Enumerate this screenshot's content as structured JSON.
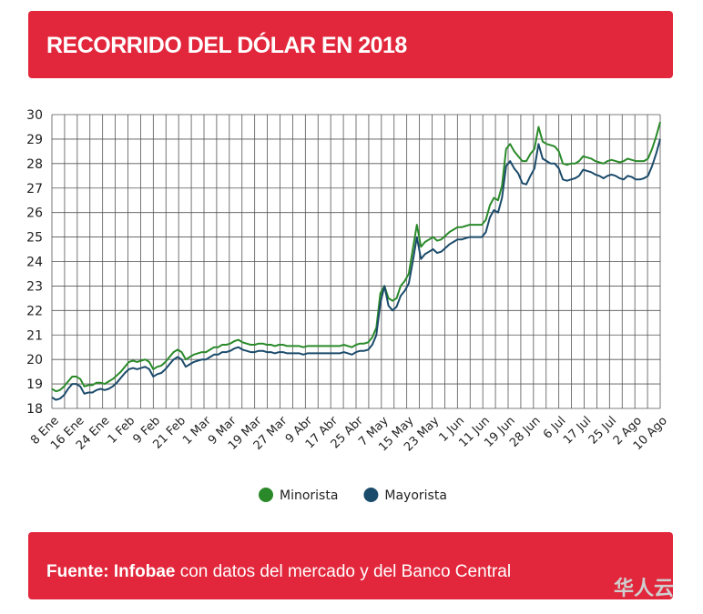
{
  "header": {
    "title": "RECORRIDO DEL DÓLAR EN 2018"
  },
  "footer": {
    "source_label": "Fuente:",
    "source_brand": "Infobae",
    "source_rest": "con datos del mercado y del Banco Central"
  },
  "watermark": "华人云",
  "colors": {
    "header_bg": "#e2273c",
    "minorista": "#2a8a2a",
    "mayorista": "#1b4b6b",
    "grid": "#555555"
  },
  "chart_data": {
    "type": "line",
    "title": "RECORRIDO DEL DÓLAR EN 2018",
    "xlabel": "",
    "ylabel": "",
    "ylim": [
      18,
      30
    ],
    "yticks": [
      18,
      19,
      20,
      21,
      22,
      23,
      24,
      25,
      26,
      27,
      28,
      29,
      30
    ],
    "grid": true,
    "legend_position": "bottom-center",
    "x_tick_labels": [
      "8 Ene",
      "16 Ene",
      "24 Ene",
      "1 Feb",
      "9 Feb",
      "21 Feb",
      "1 Mar",
      "9 Mar",
      "19 Mar",
      "27 Mar",
      "9 Abr",
      "17 Abr",
      "25 Abr",
      "7 May",
      "15 May",
      "23 May",
      "1 Jun",
      "11 Jun",
      "19 Jun",
      "28 Jun",
      "6 Jul",
      "17 Jul",
      "25 Jul",
      "2 Ago",
      "10 Ago"
    ],
    "x_index_range": [
      0,
      150
    ],
    "series": [
      {
        "name": "Minorista",
        "color": "#2a8a2a",
        "points": [
          [
            0,
            18.8
          ],
          [
            1,
            18.7
          ],
          [
            2,
            18.75
          ],
          [
            3,
            18.9
          ],
          [
            4,
            19.1
          ],
          [
            5,
            19.3
          ],
          [
            6,
            19.3
          ],
          [
            7,
            19.2
          ],
          [
            8,
            18.9
          ],
          [
            9,
            18.95
          ],
          [
            10,
            18.95
          ],
          [
            11,
            19.05
          ],
          [
            12,
            19.05
          ],
          [
            13,
            19.0
          ],
          [
            14,
            19.1
          ],
          [
            15,
            19.2
          ],
          [
            16,
            19.35
          ],
          [
            17,
            19.5
          ],
          [
            18,
            19.7
          ],
          [
            19,
            19.9
          ],
          [
            20,
            19.95
          ],
          [
            21,
            19.9
          ],
          [
            22,
            19.95
          ],
          [
            23,
            20.0
          ],
          [
            24,
            19.9
          ],
          [
            25,
            19.6
          ],
          [
            26,
            19.7
          ],
          [
            27,
            19.75
          ],
          [
            28,
            19.9
          ],
          [
            29,
            20.1
          ],
          [
            30,
            20.3
          ],
          [
            31,
            20.4
          ],
          [
            32,
            20.3
          ],
          [
            33,
            20.0
          ],
          [
            34,
            20.1
          ],
          [
            35,
            20.2
          ],
          [
            36,
            20.25
          ],
          [
            37,
            20.3
          ],
          [
            38,
            20.3
          ],
          [
            39,
            20.4
          ],
          [
            40,
            20.5
          ],
          [
            41,
            20.5
          ],
          [
            42,
            20.6
          ],
          [
            43,
            20.6
          ],
          [
            44,
            20.65
          ],
          [
            45,
            20.75
          ],
          [
            46,
            20.8
          ],
          [
            47,
            20.7
          ],
          [
            48,
            20.65
          ],
          [
            49,
            20.6
          ],
          [
            50,
            20.6
          ],
          [
            51,
            20.65
          ],
          [
            52,
            20.65
          ],
          [
            53,
            20.6
          ],
          [
            54,
            20.6
          ],
          [
            55,
            20.55
          ],
          [
            56,
            20.6
          ],
          [
            57,
            20.6
          ],
          [
            58,
            20.55
          ],
          [
            59,
            20.55
          ],
          [
            60,
            20.55
          ],
          [
            61,
            20.55
          ],
          [
            62,
            20.5
          ],
          [
            63,
            20.55
          ],
          [
            64,
            20.55
          ],
          [
            65,
            20.55
          ],
          [
            66,
            20.55
          ],
          [
            67,
            20.55
          ],
          [
            68,
            20.55
          ],
          [
            69,
            20.55
          ],
          [
            70,
            20.55
          ],
          [
            71,
            20.55
          ],
          [
            72,
            20.6
          ],
          [
            73,
            20.55
          ],
          [
            74,
            20.5
          ],
          [
            75,
            20.6
          ],
          [
            76,
            20.65
          ],
          [
            77,
            20.65
          ],
          [
            78,
            20.7
          ],
          [
            79,
            20.9
          ],
          [
            80,
            21.3
          ],
          [
            81,
            22.7
          ],
          [
            82,
            23.0
          ],
          [
            83,
            22.5
          ],
          [
            84,
            22.4
          ],
          [
            85,
            22.5
          ],
          [
            86,
            23.0
          ],
          [
            87,
            23.2
          ],
          [
            88,
            23.5
          ],
          [
            89,
            24.5
          ],
          [
            90,
            25.5
          ],
          [
            91,
            24.6
          ],
          [
            92,
            24.8
          ],
          [
            93,
            24.9
          ],
          [
            94,
            25.0
          ],
          [
            95,
            24.85
          ],
          [
            96,
            24.9
          ],
          [
            97,
            25.05
          ],
          [
            98,
            25.2
          ],
          [
            99,
            25.3
          ],
          [
            100,
            25.4
          ],
          [
            101,
            25.4
          ],
          [
            102,
            25.45
          ],
          [
            103,
            25.5
          ],
          [
            104,
            25.5
          ],
          [
            105,
            25.5
          ],
          [
            106,
            25.5
          ],
          [
            107,
            25.7
          ],
          [
            108,
            26.3
          ],
          [
            109,
            26.6
          ],
          [
            110,
            26.5
          ],
          [
            111,
            27.1
          ],
          [
            112,
            28.6
          ],
          [
            113,
            28.8
          ],
          [
            114,
            28.5
          ],
          [
            115,
            28.3
          ],
          [
            116,
            28.1
          ],
          [
            117,
            28.1
          ],
          [
            118,
            28.4
          ],
          [
            119,
            28.6
          ],
          [
            120,
            29.5
          ],
          [
            121,
            28.9
          ],
          [
            122,
            28.8
          ],
          [
            123,
            28.75
          ],
          [
            124,
            28.7
          ],
          [
            125,
            28.5
          ],
          [
            126,
            28.0
          ],
          [
            127,
            27.95
          ],
          [
            128,
            28.0
          ],
          [
            129,
            28.0
          ],
          [
            130,
            28.1
          ],
          [
            131,
            28.3
          ],
          [
            132,
            28.25
          ],
          [
            133,
            28.2
          ],
          [
            134,
            28.1
          ],
          [
            135,
            28.05
          ],
          [
            136,
            28.0
          ],
          [
            137,
            28.1
          ],
          [
            138,
            28.15
          ],
          [
            139,
            28.1
          ],
          [
            140,
            28.05
          ],
          [
            141,
            28.1
          ],
          [
            142,
            28.2
          ],
          [
            143,
            28.15
          ],
          [
            144,
            28.1
          ],
          [
            145,
            28.1
          ],
          [
            146,
            28.1
          ],
          [
            147,
            28.2
          ],
          [
            148,
            28.6
          ],
          [
            149,
            29.1
          ],
          [
            150,
            29.7
          ]
        ]
      },
      {
        "name": "Mayorista",
        "color": "#1b4b6b",
        "points": [
          [
            0,
            18.45
          ],
          [
            1,
            18.35
          ],
          [
            2,
            18.4
          ],
          [
            3,
            18.55
          ],
          [
            4,
            18.8
          ],
          [
            5,
            19.0
          ],
          [
            6,
            19.0
          ],
          [
            7,
            18.9
          ],
          [
            8,
            18.6
          ],
          [
            9,
            18.65
          ],
          [
            10,
            18.65
          ],
          [
            11,
            18.75
          ],
          [
            12,
            18.8
          ],
          [
            13,
            18.75
          ],
          [
            14,
            18.8
          ],
          [
            15,
            18.9
          ],
          [
            16,
            19.05
          ],
          [
            17,
            19.25
          ],
          [
            18,
            19.45
          ],
          [
            19,
            19.6
          ],
          [
            20,
            19.65
          ],
          [
            21,
            19.6
          ],
          [
            22,
            19.65
          ],
          [
            23,
            19.7
          ],
          [
            24,
            19.6
          ],
          [
            25,
            19.3
          ],
          [
            26,
            19.4
          ],
          [
            27,
            19.45
          ],
          [
            28,
            19.6
          ],
          [
            29,
            19.8
          ],
          [
            30,
            20.0
          ],
          [
            31,
            20.1
          ],
          [
            32,
            20.0
          ],
          [
            33,
            19.7
          ],
          [
            34,
            19.8
          ],
          [
            35,
            19.9
          ],
          [
            36,
            19.95
          ],
          [
            37,
            20.0
          ],
          [
            38,
            20.0
          ],
          [
            39,
            20.1
          ],
          [
            40,
            20.2
          ],
          [
            41,
            20.2
          ],
          [
            42,
            20.3
          ],
          [
            43,
            20.3
          ],
          [
            44,
            20.35
          ],
          [
            45,
            20.45
          ],
          [
            46,
            20.5
          ],
          [
            47,
            20.4
          ],
          [
            48,
            20.35
          ],
          [
            49,
            20.3
          ],
          [
            50,
            20.3
          ],
          [
            51,
            20.35
          ],
          [
            52,
            20.35
          ],
          [
            53,
            20.3
          ],
          [
            54,
            20.3
          ],
          [
            55,
            20.25
          ],
          [
            56,
            20.3
          ],
          [
            57,
            20.3
          ],
          [
            58,
            20.25
          ],
          [
            59,
            20.25
          ],
          [
            60,
            20.25
          ],
          [
            61,
            20.25
          ],
          [
            62,
            20.2
          ],
          [
            63,
            20.25
          ],
          [
            64,
            20.25
          ],
          [
            65,
            20.25
          ],
          [
            66,
            20.25
          ],
          [
            67,
            20.25
          ],
          [
            68,
            20.25
          ],
          [
            69,
            20.25
          ],
          [
            70,
            20.25
          ],
          [
            71,
            20.25
          ],
          [
            72,
            20.3
          ],
          [
            73,
            20.25
          ],
          [
            74,
            20.2
          ],
          [
            75,
            20.3
          ],
          [
            76,
            20.35
          ],
          [
            77,
            20.35
          ],
          [
            78,
            20.4
          ],
          [
            79,
            20.6
          ],
          [
            80,
            21.0
          ],
          [
            81,
            22.3
          ],
          [
            82,
            23.0
          ],
          [
            83,
            22.2
          ],
          [
            84,
            22.0
          ],
          [
            85,
            22.15
          ],
          [
            86,
            22.6
          ],
          [
            87,
            22.8
          ],
          [
            88,
            23.1
          ],
          [
            89,
            24.0
          ],
          [
            90,
            25.0
          ],
          [
            91,
            24.1
          ],
          [
            92,
            24.3
          ],
          [
            93,
            24.4
          ],
          [
            94,
            24.5
          ],
          [
            95,
            24.35
          ],
          [
            96,
            24.4
          ],
          [
            97,
            24.55
          ],
          [
            98,
            24.7
          ],
          [
            99,
            24.8
          ],
          [
            100,
            24.9
          ],
          [
            101,
            24.9
          ],
          [
            102,
            24.95
          ],
          [
            103,
            25.0
          ],
          [
            104,
            25.0
          ],
          [
            105,
            25.0
          ],
          [
            106,
            25.0
          ],
          [
            107,
            25.2
          ],
          [
            108,
            25.8
          ],
          [
            109,
            26.1
          ],
          [
            110,
            26.0
          ],
          [
            111,
            26.6
          ],
          [
            112,
            27.9
          ],
          [
            113,
            28.1
          ],
          [
            114,
            27.8
          ],
          [
            115,
            27.6
          ],
          [
            116,
            27.2
          ],
          [
            117,
            27.15
          ],
          [
            118,
            27.5
          ],
          [
            119,
            27.8
          ],
          [
            120,
            28.8
          ],
          [
            121,
            28.2
          ],
          [
            122,
            28.1
          ],
          [
            123,
            28.0
          ],
          [
            124,
            28.0
          ],
          [
            125,
            27.8
          ],
          [
            126,
            27.35
          ],
          [
            127,
            27.3
          ],
          [
            128,
            27.35
          ],
          [
            129,
            27.4
          ],
          [
            130,
            27.5
          ],
          [
            131,
            27.75
          ],
          [
            132,
            27.7
          ],
          [
            133,
            27.65
          ],
          [
            134,
            27.55
          ],
          [
            135,
            27.5
          ],
          [
            136,
            27.4
          ],
          [
            137,
            27.5
          ],
          [
            138,
            27.55
          ],
          [
            139,
            27.5
          ],
          [
            140,
            27.4
          ],
          [
            141,
            27.35
          ],
          [
            142,
            27.5
          ],
          [
            143,
            27.45
          ],
          [
            144,
            27.35
          ],
          [
            145,
            27.35
          ],
          [
            146,
            27.4
          ],
          [
            147,
            27.5
          ],
          [
            148,
            27.9
          ],
          [
            149,
            28.4
          ],
          [
            150,
            29.0
          ]
        ]
      }
    ]
  }
}
